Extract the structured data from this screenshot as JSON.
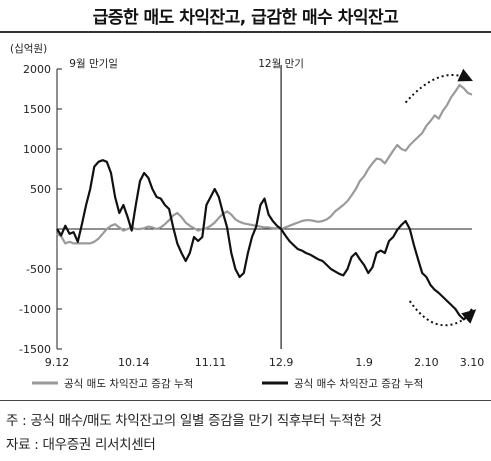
{
  "title": "급증한 매도 차익잔고, 급감한 매수 차익잔고",
  "footnote": "주 : 공식 매수/매도 차익잔고의 일별 증감을 만기 직후부터 누적한 것",
  "source": "자료 : 대우증권 리서치센터",
  "colors": {
    "sell": "#9a9a9a",
    "buy": "#111111",
    "axis": "#222222"
  },
  "chart_data": {
    "type": "line",
    "unit_label": "(십억원)",
    "ylim": [
      -1500,
      2000
    ],
    "yticks": [
      {
        "v": 2000,
        "label": "2000"
      },
      {
        "v": 1500,
        "label": "1500"
      },
      {
        "v": 1000,
        "label": "1000"
      },
      {
        "v": 500,
        "label": "500"
      },
      {
        "v": 0,
        "label": ""
      },
      {
        "v": -500,
        "label": "-500"
      },
      {
        "v": -1000,
        "label": "-1000"
      },
      {
        "v": -1500,
        "label": "-1500"
      }
    ],
    "xrange": [
      0,
      100
    ],
    "xticks": [
      {
        "x": 0,
        "label": "9.12"
      },
      {
        "x": 18.5,
        "label": "10.14"
      },
      {
        "x": 37,
        "label": "11.11"
      },
      {
        "x": 54,
        "label": "12.9"
      },
      {
        "x": 74,
        "label": "1.9"
      },
      {
        "x": 89,
        "label": "2.10"
      },
      {
        "x": 100,
        "label": "3.10"
      }
    ],
    "annotations": [
      {
        "x": 2,
        "text": "9월 만기일"
      },
      {
        "x": 54,
        "text": "12월 만기"
      }
    ],
    "expiry_marker_x": 54,
    "series": [
      {
        "name": "공식 매도 차익잔고 증감 누적",
        "key": "sell",
        "points": [
          [
            0,
            -60
          ],
          [
            1,
            -90
          ],
          [
            2,
            -180
          ],
          [
            3,
            -160
          ],
          [
            4,
            -180
          ],
          [
            5,
            -180
          ],
          [
            6,
            -180
          ],
          [
            7,
            -180
          ],
          [
            8,
            -180
          ],
          [
            9,
            -160
          ],
          [
            10,
            -120
          ],
          [
            11,
            -60
          ],
          [
            12,
            0
          ],
          [
            13,
            40
          ],
          [
            14,
            60
          ],
          [
            15,
            20
          ],
          [
            16,
            -20
          ],
          [
            17,
            0
          ],
          [
            18,
            20
          ],
          [
            19,
            0
          ],
          [
            20,
            0
          ],
          [
            21,
            10
          ],
          [
            22,
            30
          ],
          [
            23,
            20
          ],
          [
            24,
            0
          ],
          [
            25,
            20
          ],
          [
            26,
            60
          ],
          [
            27,
            110
          ],
          [
            28,
            170
          ],
          [
            29,
            200
          ],
          [
            30,
            150
          ],
          [
            31,
            80
          ],
          [
            32,
            40
          ],
          [
            33,
            10
          ],
          [
            34,
            -20
          ],
          [
            35,
            0
          ],
          [
            36,
            10
          ],
          [
            37,
            40
          ],
          [
            38,
            80
          ],
          [
            39,
            140
          ],
          [
            40,
            190
          ],
          [
            41,
            220
          ],
          [
            42,
            180
          ],
          [
            43,
            120
          ],
          [
            44,
            90
          ],
          [
            45,
            70
          ],
          [
            46,
            60
          ],
          [
            47,
            50
          ],
          [
            48,
            40
          ],
          [
            49,
            30
          ],
          [
            50,
            20
          ],
          [
            51,
            20
          ],
          [
            52,
            10
          ],
          [
            53,
            10
          ],
          [
            54,
            0
          ],
          [
            55,
            20
          ],
          [
            56,
            40
          ],
          [
            57,
            60
          ],
          [
            58,
            80
          ],
          [
            59,
            100
          ],
          [
            60,
            110
          ],
          [
            61,
            110
          ],
          [
            62,
            100
          ],
          [
            63,
            90
          ],
          [
            64,
            100
          ],
          [
            65,
            120
          ],
          [
            66,
            160
          ],
          [
            67,
            220
          ],
          [
            68,
            260
          ],
          [
            69,
            300
          ],
          [
            70,
            350
          ],
          [
            71,
            420
          ],
          [
            72,
            500
          ],
          [
            73,
            600
          ],
          [
            74,
            660
          ],
          [
            75,
            750
          ],
          [
            76,
            820
          ],
          [
            77,
            880
          ],
          [
            78,
            870
          ],
          [
            79,
            820
          ],
          [
            80,
            900
          ],
          [
            81,
            980
          ],
          [
            82,
            1050
          ],
          [
            83,
            1000
          ],
          [
            84,
            980
          ],
          [
            85,
            1050
          ],
          [
            86,
            1100
          ],
          [
            87,
            1150
          ],
          [
            88,
            1200
          ],
          [
            89,
            1290
          ],
          [
            90,
            1350
          ],
          [
            91,
            1420
          ],
          [
            92,
            1380
          ],
          [
            93,
            1480
          ],
          [
            94,
            1550
          ],
          [
            95,
            1650
          ],
          [
            96,
            1720
          ],
          [
            97,
            1800
          ],
          [
            98,
            1760
          ],
          [
            99,
            1700
          ],
          [
            100,
            1680
          ]
        ]
      },
      {
        "name": "공식 매수 차익잔고 증감 누적",
        "key": "buy",
        "points": [
          [
            0,
            0
          ],
          [
            1,
            -80
          ],
          [
            2,
            40
          ],
          [
            3,
            -60
          ],
          [
            4,
            -40
          ],
          [
            5,
            -160
          ],
          [
            6,
            60
          ],
          [
            7,
            300
          ],
          [
            8,
            500
          ],
          [
            9,
            780
          ],
          [
            10,
            840
          ],
          [
            11,
            860
          ],
          [
            12,
            840
          ],
          [
            13,
            700
          ],
          [
            14,
            400
          ],
          [
            15,
            200
          ],
          [
            16,
            300
          ],
          [
            17,
            150
          ],
          [
            18,
            -20
          ],
          [
            19,
            300
          ],
          [
            20,
            600
          ],
          [
            21,
            700
          ],
          [
            22,
            640
          ],
          [
            23,
            500
          ],
          [
            24,
            400
          ],
          [
            25,
            380
          ],
          [
            26,
            300
          ],
          [
            27,
            250
          ],
          [
            28,
            20
          ],
          [
            29,
            -180
          ],
          [
            30,
            -300
          ],
          [
            31,
            -400
          ],
          [
            32,
            -300
          ],
          [
            33,
            -100
          ],
          [
            34,
            -150
          ],
          [
            35,
            -100
          ],
          [
            36,
            300
          ],
          [
            37,
            400
          ],
          [
            38,
            500
          ],
          [
            39,
            400
          ],
          [
            40,
            200
          ],
          [
            41,
            20
          ],
          [
            42,
            -300
          ],
          [
            43,
            -500
          ],
          [
            44,
            -600
          ],
          [
            45,
            -550
          ],
          [
            46,
            -300
          ],
          [
            47,
            -100
          ],
          [
            48,
            30
          ],
          [
            49,
            300
          ],
          [
            50,
            380
          ],
          [
            51,
            180
          ],
          [
            52,
            100
          ],
          [
            53,
            40
          ],
          [
            54,
            0
          ],
          [
            55,
            -80
          ],
          [
            56,
            -150
          ],
          [
            57,
            -200
          ],
          [
            58,
            -250
          ],
          [
            59,
            -270
          ],
          [
            60,
            -300
          ],
          [
            61,
            -320
          ],
          [
            62,
            -350
          ],
          [
            63,
            -380
          ],
          [
            64,
            -400
          ],
          [
            65,
            -450
          ],
          [
            66,
            -500
          ],
          [
            67,
            -530
          ],
          [
            68,
            -560
          ],
          [
            69,
            -580
          ],
          [
            70,
            -500
          ],
          [
            71,
            -350
          ],
          [
            72,
            -300
          ],
          [
            73,
            -380
          ],
          [
            74,
            -450
          ],
          [
            75,
            -550
          ],
          [
            76,
            -480
          ],
          [
            77,
            -300
          ],
          [
            78,
            -270
          ],
          [
            79,
            -300
          ],
          [
            80,
            -150
          ],
          [
            81,
            -100
          ],
          [
            82,
            -10
          ],
          [
            83,
            50
          ],
          [
            84,
            100
          ],
          [
            85,
            0
          ],
          [
            86,
            -200
          ],
          [
            87,
            -380
          ],
          [
            88,
            -550
          ],
          [
            89,
            -600
          ],
          [
            90,
            -700
          ],
          [
            91,
            -760
          ],
          [
            92,
            -800
          ],
          [
            93,
            -850
          ],
          [
            94,
            -900
          ],
          [
            95,
            -950
          ],
          [
            96,
            -1000
          ],
          [
            97,
            -1080
          ],
          [
            98,
            -1130
          ],
          [
            99,
            -1080
          ],
          [
            100,
            -1000
          ]
        ]
      }
    ],
    "legend": [
      {
        "key": "sell",
        "label": "공식 매도 차익잔고 증감 누적"
      },
      {
        "key": "buy",
        "label": "공식 매수 차익잔고 증감 누적"
      }
    ],
    "grid": false
  }
}
